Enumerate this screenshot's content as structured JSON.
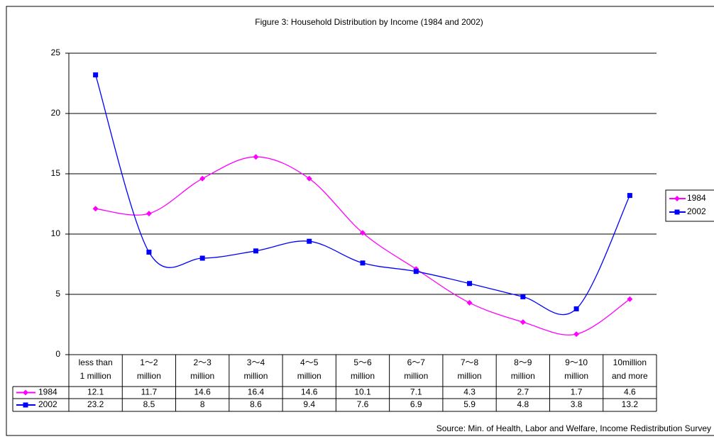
{
  "chart_data": {
    "type": "line",
    "title": "Figure 3: Household Distribution by Income (1984 and 2002)",
    "categories": [
      [
        "less than",
        "1 million"
      ],
      [
        "1～2",
        "million"
      ],
      [
        "2～3",
        "million"
      ],
      [
        "3～4",
        "million"
      ],
      [
        "4～5",
        "million"
      ],
      [
        "5～6",
        "million"
      ],
      [
        "6～7",
        "million"
      ],
      [
        "7～8",
        "million"
      ],
      [
        "8～9",
        "million"
      ],
      [
        "9～10",
        "million"
      ],
      [
        "10million",
        "and more"
      ]
    ],
    "series": [
      {
        "name": "1984",
        "color": "#ff00ff",
        "marker": "diamond",
        "values": [
          12.1,
          11.7,
          14.6,
          16.4,
          14.6,
          10.1,
          7.1,
          4.3,
          2.7,
          1.7,
          4.6
        ]
      },
      {
        "name": "2002",
        "color": "#0000ff",
        "marker": "square",
        "values": [
          23.2,
          8.5,
          8,
          8.6,
          9.4,
          7.6,
          6.9,
          5.9,
          4.8,
          3.8,
          13.2
        ]
      }
    ],
    "ylim": [
      0,
      25
    ],
    "yticks": [
      0,
      5,
      10,
      15,
      20,
      25
    ],
    "grid": true,
    "smooth": true,
    "legend": "right",
    "source": "Source: Min. of Health, Labor and Welfare, Income Redistribution Survey"
  }
}
